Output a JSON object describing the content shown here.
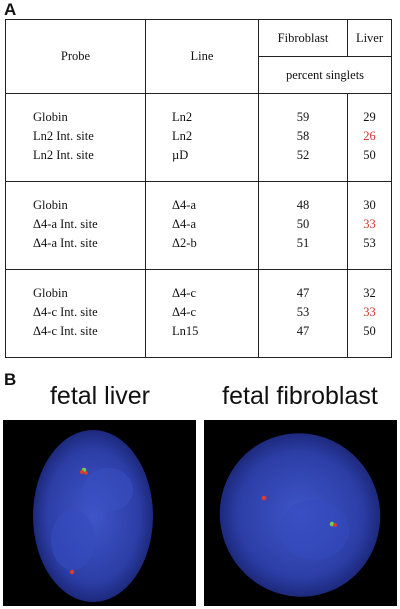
{
  "panel_a": {
    "label": "A",
    "headers": {
      "probe": "Probe",
      "line": "Line",
      "fibroblast": "Fibroblast",
      "liver": "Liver",
      "subheader": "percent singlets"
    },
    "groups": [
      {
        "rows": [
          {
            "probe": "Globin",
            "line": "Ln2",
            "fibroblast": "59",
            "liver": "29"
          },
          {
            "probe": "Ln2 Int. site",
            "line": "Ln2",
            "fibroblast": "58",
            "liver": "26"
          },
          {
            "probe": "Ln2 Int. site",
            "line": "µD",
            "fibroblast": "52",
            "liver": "50"
          }
        ]
      },
      {
        "rows": [
          {
            "probe": "Globin",
            "line": "Δ4-a",
            "fibroblast": "48",
            "liver": "30"
          },
          {
            "probe": "Δ4-a Int. site",
            "line": "Δ4-a",
            "fibroblast": "50",
            "liver": "33"
          },
          {
            "probe": "Δ4-a Int. site",
            "line": "Δ2-b",
            "fibroblast": "51",
            "liver": "53"
          }
        ]
      },
      {
        "rows": [
          {
            "probe": "Globin",
            "line": "Δ4-c",
            "fibroblast": "47",
            "liver": "32"
          },
          {
            "probe": "Δ4-c Int. site",
            "line": "Δ4-c",
            "fibroblast": "53",
            "liver": "33"
          },
          {
            "probe": "Δ4-c Int. site",
            "line": "Ln15",
            "fibroblast": "47",
            "liver": "50"
          }
        ]
      }
    ],
    "highlight_color": "#d3342b"
  },
  "panel_b": {
    "label": "B",
    "left_title": "fetal liver",
    "right_title": "fetal fibroblast",
    "nucleus_color": "#2f3fb0",
    "red_signal_color": "#e23b2a",
    "green_signal_color": "#6fd14a"
  }
}
